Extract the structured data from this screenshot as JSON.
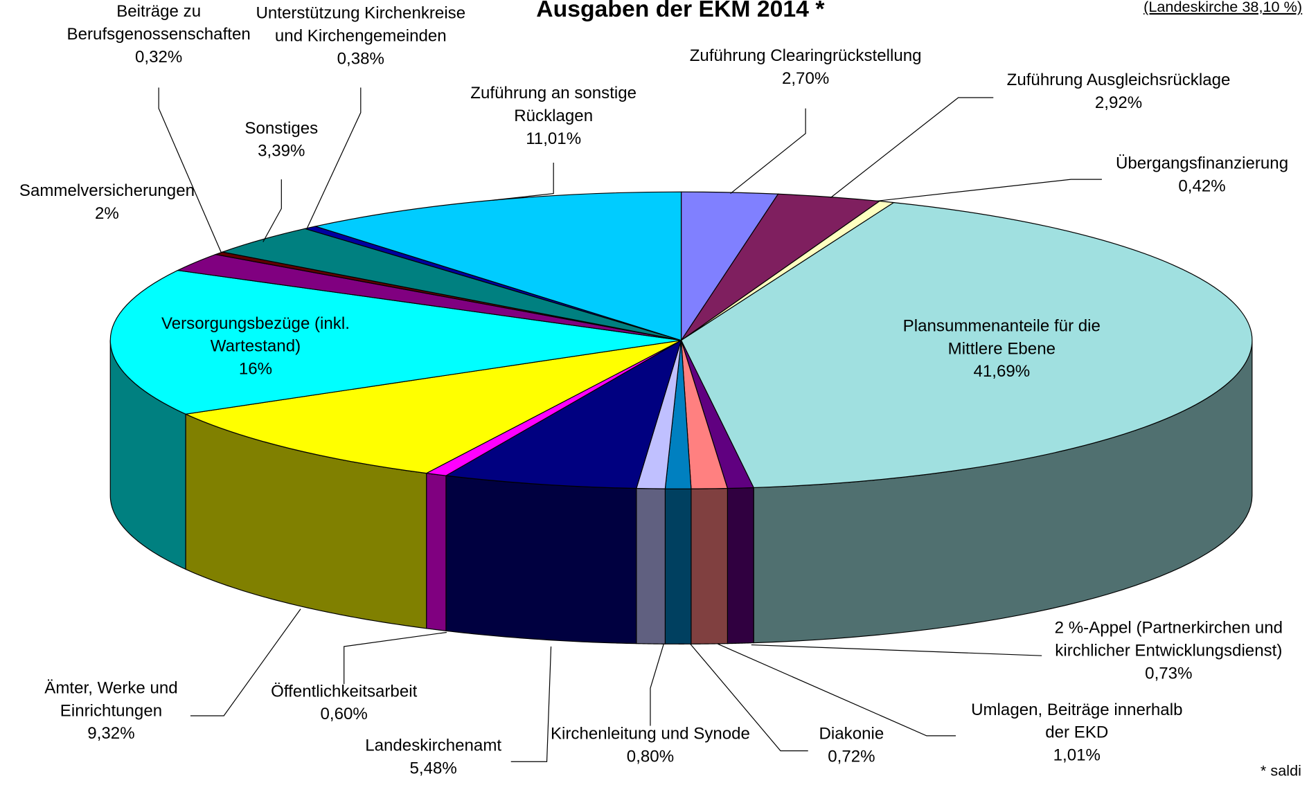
{
  "chart_data": {
    "type": "pie3d",
    "title": "Ausgaben der EKM 2014 *",
    "annotation": "(Landeskirche 38,10 %)",
    "footnote": "* saldi",
    "categories": [
      "Zuführung Clearingrückstellung",
      "Zuführung Ausgleichsrücklage",
      "Übergangsfinanzierung",
      "Plansummenanteile für die\nMittlere Ebene",
      "2 %-Appel (Partnerkirchen und\nkirchlicher Entwicklungsdienst)",
      "Umlagen, Beiträge innerhalb\nder EKD",
      "Diakonie",
      "Kirchenleitung und Synode",
      "Landeskirchenamt",
      "Öffentlichkeitsarbeit",
      "Ämter, Werke und\nEinrichtungen",
      "Versorgungsbezüge (inkl.\nWartestand)",
      "Sammelversicherungen",
      "Beiträge zu\nBerufsgenossenschaften",
      "Sonstiges",
      "Unterstützung Kirchenkreise\nund Kirchengemeinden",
      "Zuführung an sonstige\nRücklagen"
    ],
    "values": [
      2.7,
      2.92,
      0.42,
      41.69,
      0.73,
      1.01,
      0.72,
      0.8,
      5.48,
      0.6,
      9.32,
      16,
      2,
      0.32,
      3.39,
      0.38,
      11.01
    ],
    "value_labels": [
      "2,70%",
      "2,92%",
      "0,42%",
      "41,69%",
      "0,73%",
      "1,01%",
      "0,72%",
      "0,80%",
      "5,48%",
      "0,60%",
      "9,32%",
      "16%",
      "2%",
      "0,32%",
      "3,39%",
      "0,38%",
      "11,01%"
    ],
    "colors": [
      "#8080ff",
      "#7f1f5f",
      "#ffffc0",
      "#a0e0e0",
      "#600080",
      "#ff8080",
      "#0080c0",
      "#c0c0ff",
      "#000080",
      "#ff00ff",
      "#ffff00",
      "#00ffff",
      "#800080",
      "#600000",
      "#008080",
      "#0000a0",
      "#00ccff"
    ]
  }
}
